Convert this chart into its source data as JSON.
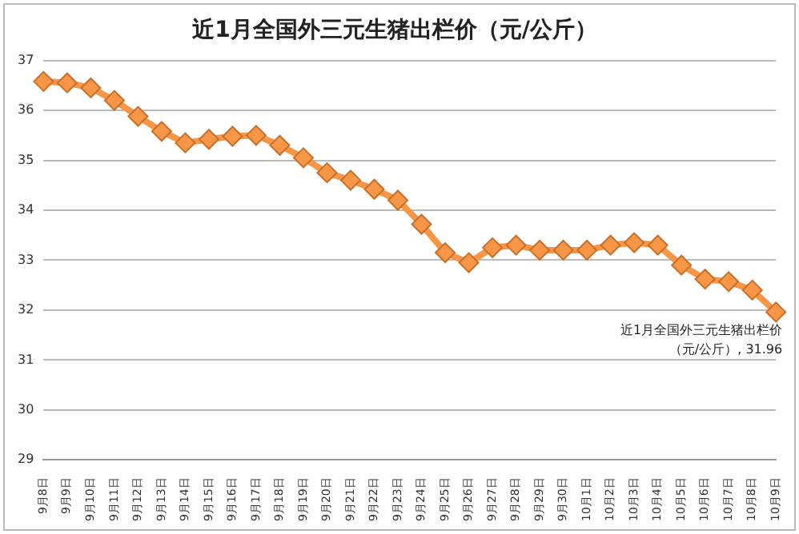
{
  "chart_data": {
    "type": "line",
    "title": "近1月全国外三元生猪出栏价（元/公斤）",
    "categories": [
      "9月8日",
      "9月9日",
      "9月10日",
      "9月11日",
      "9月12日",
      "9月13日",
      "9月14日",
      "9月15日",
      "9月16日",
      "9月17日",
      "9月18日",
      "9月19日",
      "9月20日",
      "9月21日",
      "9月22日",
      "9月23日",
      "9月24日",
      "9月25日",
      "9月26日",
      "9月27日",
      "9月28日",
      "9月29日",
      "9月30日",
      "10月1日",
      "10月2日",
      "10月3日",
      "10月4日",
      "10月5日",
      "10月6日",
      "10月7日",
      "10月8日",
      "10月9日"
    ],
    "series": [
      {
        "color": "#f79646",
        "values": [
          36.58,
          36.55,
          36.45,
          36.2,
          35.88,
          35.58,
          35.35,
          35.42,
          35.48,
          35.5,
          35.3,
          35.05,
          34.75,
          34.6,
          34.42,
          34.2,
          33.72,
          33.15,
          32.95,
          33.25,
          33.3,
          33.2,
          33.2,
          33.2,
          33.3,
          33.35,
          33.3,
          32.9,
          32.62,
          32.57,
          32.4,
          31.96
        ]
      }
    ],
    "ylim": [
      29,
      37
    ],
    "yticks": [
      29,
      30,
      31,
      32,
      33,
      34,
      35,
      36,
      37
    ],
    "grid": "y",
    "marker": "diamond",
    "line_style": "solid",
    "legend": false,
    "annotations": [
      {
        "text": "近1月全国外三元生猪出栏价（元/公斤）, 31.96",
        "x": "10月9日",
        "y": 31.96
      }
    ]
  }
}
